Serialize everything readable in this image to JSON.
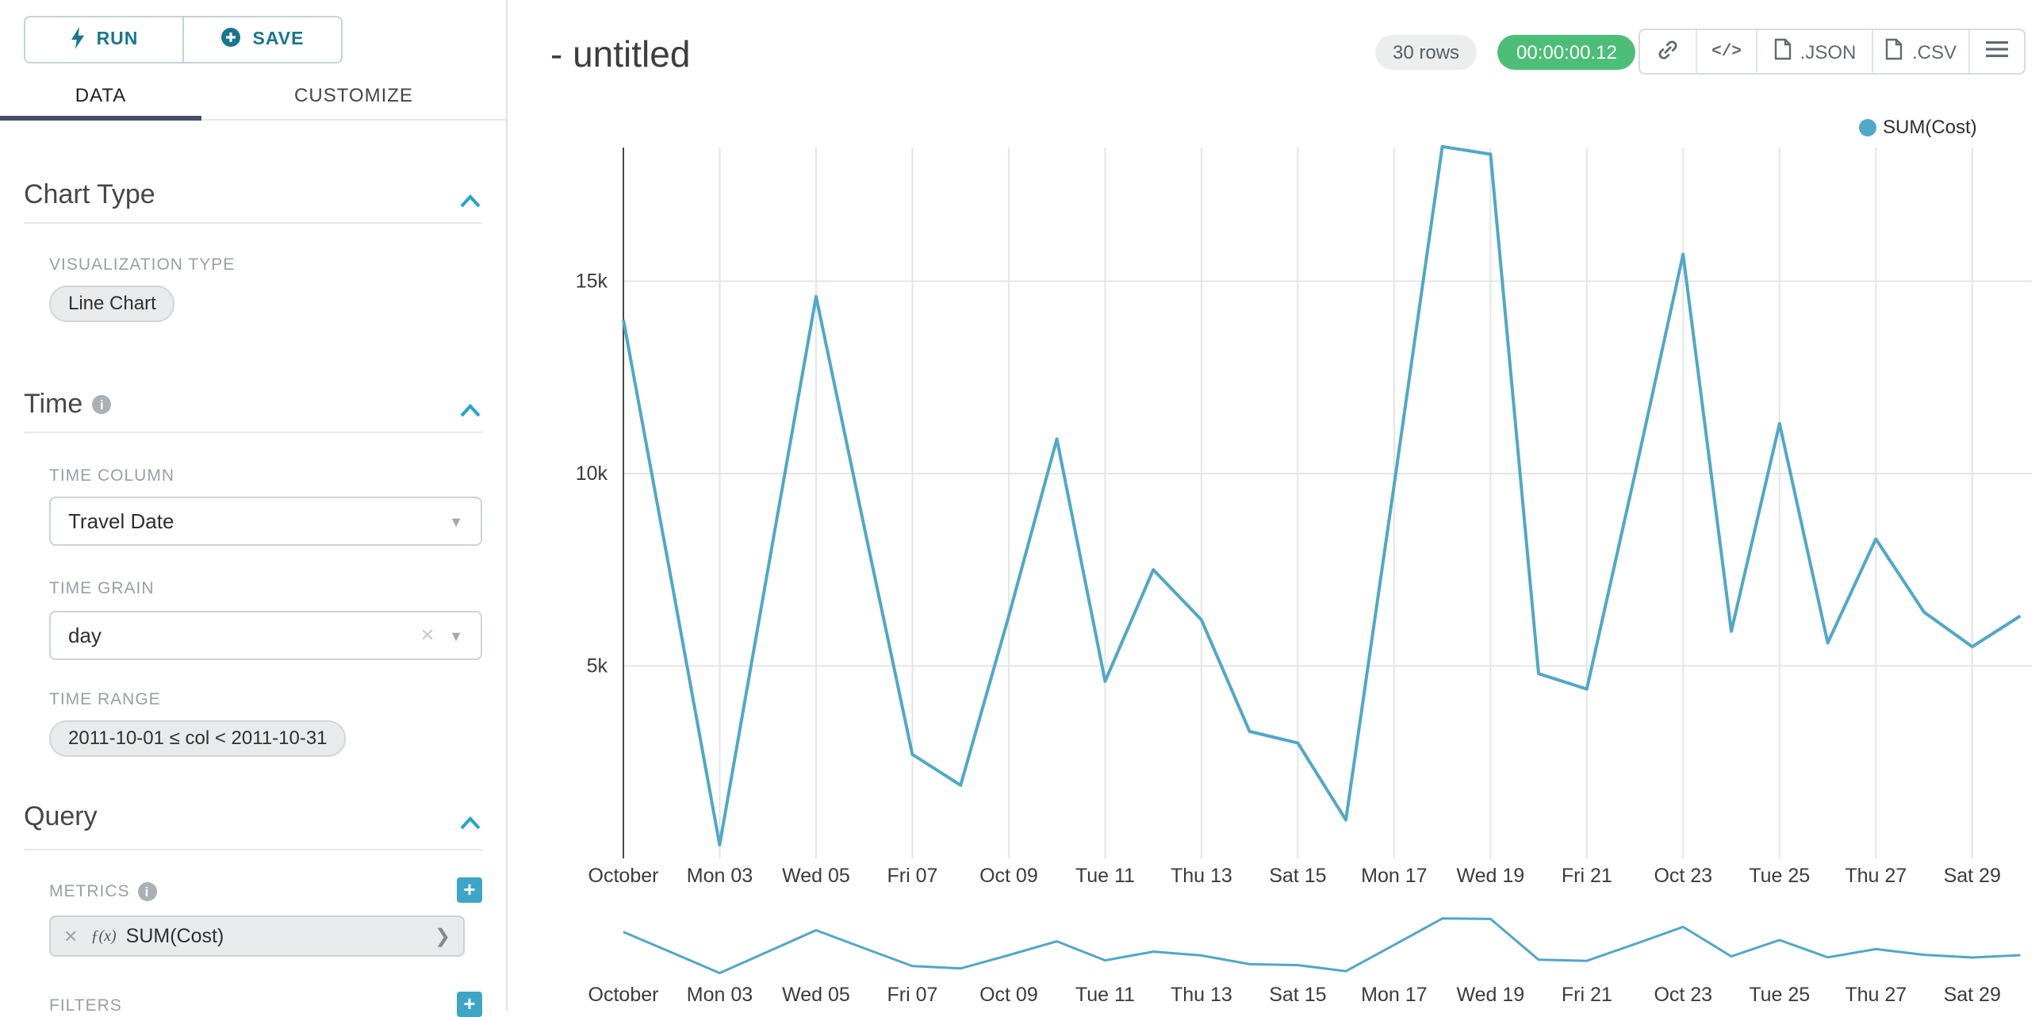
{
  "colors": {
    "accent": "#20A7C9",
    "line": "#4FA8C8",
    "timer_green": "#4DBE77",
    "tab_underline": "#454F63"
  },
  "sidebar": {
    "run": "RUN",
    "save": "SAVE",
    "tabs": {
      "data": "DATA",
      "customize": "CUSTOMIZE"
    },
    "chart_type": {
      "heading": "Chart Type",
      "viz_label": "VISUALIZATION TYPE",
      "viz_value": "Line Chart"
    },
    "time": {
      "heading": "Time",
      "col_label": "TIME COLUMN",
      "col_value": "Travel Date",
      "grain_label": "TIME GRAIN",
      "grain_value": "day",
      "range_label": "TIME RANGE",
      "range_value": "2011-10-01 ≤ col < 2011-10-31"
    },
    "query": {
      "heading": "Query",
      "metrics_label": "METRICS",
      "metric_fx": "ƒ(x)",
      "metric_value": "SUM(Cost)",
      "filters_label": "FILTERS"
    }
  },
  "header": {
    "title": "- untitled",
    "rows_badge": "30 rows",
    "timer_badge": "00:00:00.12",
    "code_icon": "</>",
    "json_label": ".JSON",
    "csv_label": ".CSV"
  },
  "legend": {
    "series": "SUM(Cost)"
  },
  "chart_data": {
    "type": "line",
    "title": "- untitled",
    "line_color": "#4FA8C8",
    "grid": true,
    "legend_position": "top-right",
    "xlabel": "",
    "ylabel": "",
    "ylim": [
      0,
      18600
    ],
    "x_tick_labels": [
      "October",
      "Mon 03",
      "Wed 05",
      "Fri 07",
      "Oct 09",
      "Tue 11",
      "Thu 13",
      "Sat 15",
      "Mon 17",
      "Wed 19",
      "Fri 21",
      "Oct 23",
      "Tue 25",
      "Thu 27",
      "Sat 29"
    ],
    "y_ticks": {
      "labels": [
        "5k",
        "10k",
        "15k"
      ],
      "values": [
        5000,
        10000,
        15000
      ]
    },
    "dates": [
      "2011-10-01",
      "2011-10-02",
      "2011-10-03",
      "2011-10-04",
      "2011-10-05",
      "2011-10-06",
      "2011-10-07",
      "2011-10-08",
      "2011-10-09",
      "2011-10-10",
      "2011-10-11",
      "2011-10-12",
      "2011-10-13",
      "2011-10-14",
      "2011-10-15",
      "2011-10-16",
      "2011-10-17",
      "2011-10-18",
      "2011-10-19",
      "2011-10-20",
      "2011-10-21",
      "2011-10-22",
      "2011-10-23",
      "2011-10-24",
      "2011-10-25",
      "2011-10-26",
      "2011-10-27",
      "2011-10-28",
      "2011-10-29",
      "2011-10-30"
    ],
    "series": [
      {
        "name": "SUM(Cost)",
        "values": [
          14000,
          7200,
          350,
          7500,
          14600,
          8600,
          2700,
          1900,
          6300,
          10900,
          4600,
          7500,
          6200,
          3300,
          3000,
          1000,
          9700,
          18500,
          18300,
          4800,
          4400,
          10000,
          15700,
          5900,
          11300,
          5600,
          8300,
          6400,
          5500,
          6300
        ]
      }
    ],
    "has_mini_brush_chart": true
  }
}
